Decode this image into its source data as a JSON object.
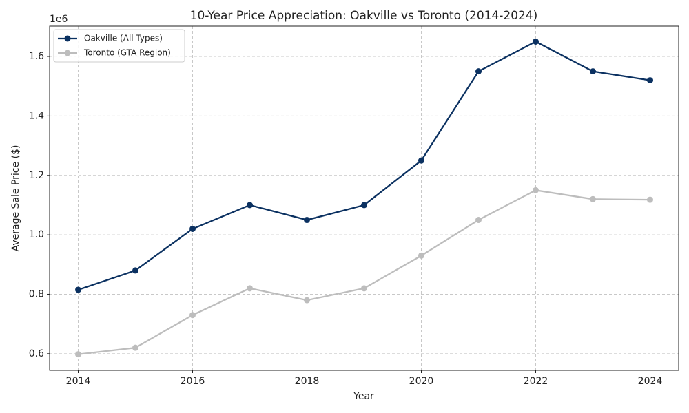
{
  "chart_data": {
    "type": "line",
    "title": "10-Year Price Appreciation: Oakville vs Toronto (2014-2024)",
    "x_label": "Year",
    "y_label": "Average Sale Price ($)",
    "y_offset_label": "1e6",
    "x": [
      2014,
      2015,
      2016,
      2017,
      2018,
      2019,
      2020,
      2021,
      2022,
      2023,
      2024
    ],
    "series": [
      {
        "name": "Oakville (All Types)",
        "color": "#0b3161",
        "values": [
          815000,
          880000,
          1020000,
          1100000,
          1050000,
          1100000,
          1250000,
          1550000,
          1650000,
          1550000,
          1520000
        ]
      },
      {
        "name": "Toronto (GTA Region)",
        "color": "#bdbdbd",
        "values": [
          598000,
          620000,
          730000,
          820000,
          780000,
          820000,
          930000,
          1050000,
          1150000,
          1120000,
          1118000
        ]
      }
    ],
    "xlim": [
      2013.5,
      2024.5
    ],
    "xticks": [
      2014,
      2016,
      2018,
      2020,
      2022,
      2024
    ],
    "ylim": [
      544000,
      1702000
    ],
    "yticks": [
      {
        "value": 600000,
        "label": "0.6"
      },
      {
        "value": 800000,
        "label": "0.8"
      },
      {
        "value": 1000000,
        "label": "1.0"
      },
      {
        "value": 1200000,
        "label": "1.2"
      },
      {
        "value": 1400000,
        "label": "1.4"
      },
      {
        "value": 1600000,
        "label": "1.6"
      }
    ],
    "grid": true,
    "legend": "upper-left"
  }
}
